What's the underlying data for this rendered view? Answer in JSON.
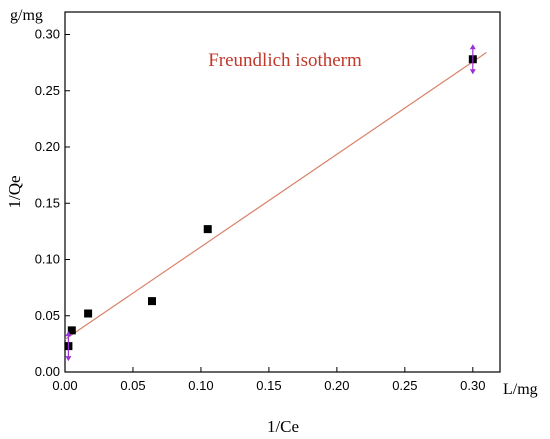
{
  "chart_data": {
    "type": "scatter",
    "title": "Freundlich isotherm",
    "xlabel": "1/Ce",
    "ylabel": "1/Qe",
    "x_unit": "L/mg",
    "y_unit": "g/mg",
    "xlim": [
      0.0,
      0.32
    ],
    "ylim": [
      0.0,
      0.32
    ],
    "x_ticks": [
      "0.00",
      "0.05",
      "0.10",
      "0.15",
      "0.20",
      "0.25",
      "0.30"
    ],
    "y_ticks": [
      "0.00",
      "0.05",
      "0.10",
      "0.15",
      "0.20",
      "0.25",
      "0.30"
    ],
    "grid": false,
    "colors": {
      "points": "#000000",
      "fit_line": "#d9826a",
      "title": "#c0392b",
      "error_bars": "#9b30d9"
    },
    "series": [
      {
        "points": [
          {
            "x": 0.0025,
            "y": 0.023
          },
          {
            "x": 0.005,
            "y": 0.037
          },
          {
            "x": 0.017,
            "y": 0.052
          },
          {
            "x": 0.064,
            "y": 0.063
          },
          {
            "x": 0.105,
            "y": 0.127
          },
          {
            "x": 0.3,
            "y": 0.278
          }
        ]
      }
    ],
    "fit_line": {
      "x_start": 0.0,
      "y_start": 0.029,
      "x_end": 0.31,
      "y_end": 0.284
    }
  }
}
